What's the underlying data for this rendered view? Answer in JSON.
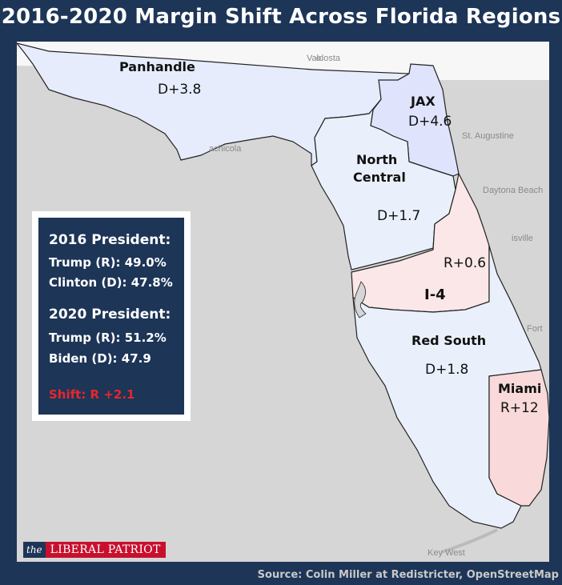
{
  "title": "2016-2020 Margin Shift Across Florida Regions",
  "regions": {
    "panhandle": {
      "name": "Panhandle",
      "value": "D+3.8",
      "color": "#e6ecfb"
    },
    "jax": {
      "name": "JAX",
      "value": "D+4.6",
      "color": "#dfe3fb"
    },
    "north_central": {
      "name_line1": "North",
      "name_line2": "Central",
      "value": "D+1.7",
      "color": "#eaf0fb"
    },
    "i4": {
      "name": "I-4",
      "value": "R+0.6",
      "color": "#fbe7e7"
    },
    "red_south": {
      "name": "Red South",
      "value": "D+1.8",
      "color": "#eaf0fb"
    },
    "miami": {
      "name": "Miami",
      "value": "R+12",
      "color": "#f9d9d9"
    }
  },
  "cities": {
    "valdosta": "Valdosta",
    "apalachicola": "achicola",
    "st_augustine": "St. Augustine",
    "daytona": "Daytona Beach",
    "titusville": "isville",
    "fort": "Fort",
    "key_west": "Key West"
  },
  "stats": {
    "h2016": "2016 President:",
    "trump2016": "Trump (R): 49.0%",
    "clinton2016": "Clinton (D): 47.8%",
    "h2020": "2020 President:",
    "trump2020": "Trump (R): 51.2%",
    "biden2020": "Biden (D): 47.9",
    "shift": "Shift: R +2.1"
  },
  "logo": {
    "the": "the",
    "name": "LIBERAL PATRIOT"
  },
  "source": "Source: Colin Miller at Redistricter, OpenStreetMap",
  "colors": {
    "frame": "#1d3557",
    "water": "#d6d6d6",
    "land": "#f4f4f4",
    "shift": "#e8262c",
    "logo_red": "#c8102e"
  }
}
